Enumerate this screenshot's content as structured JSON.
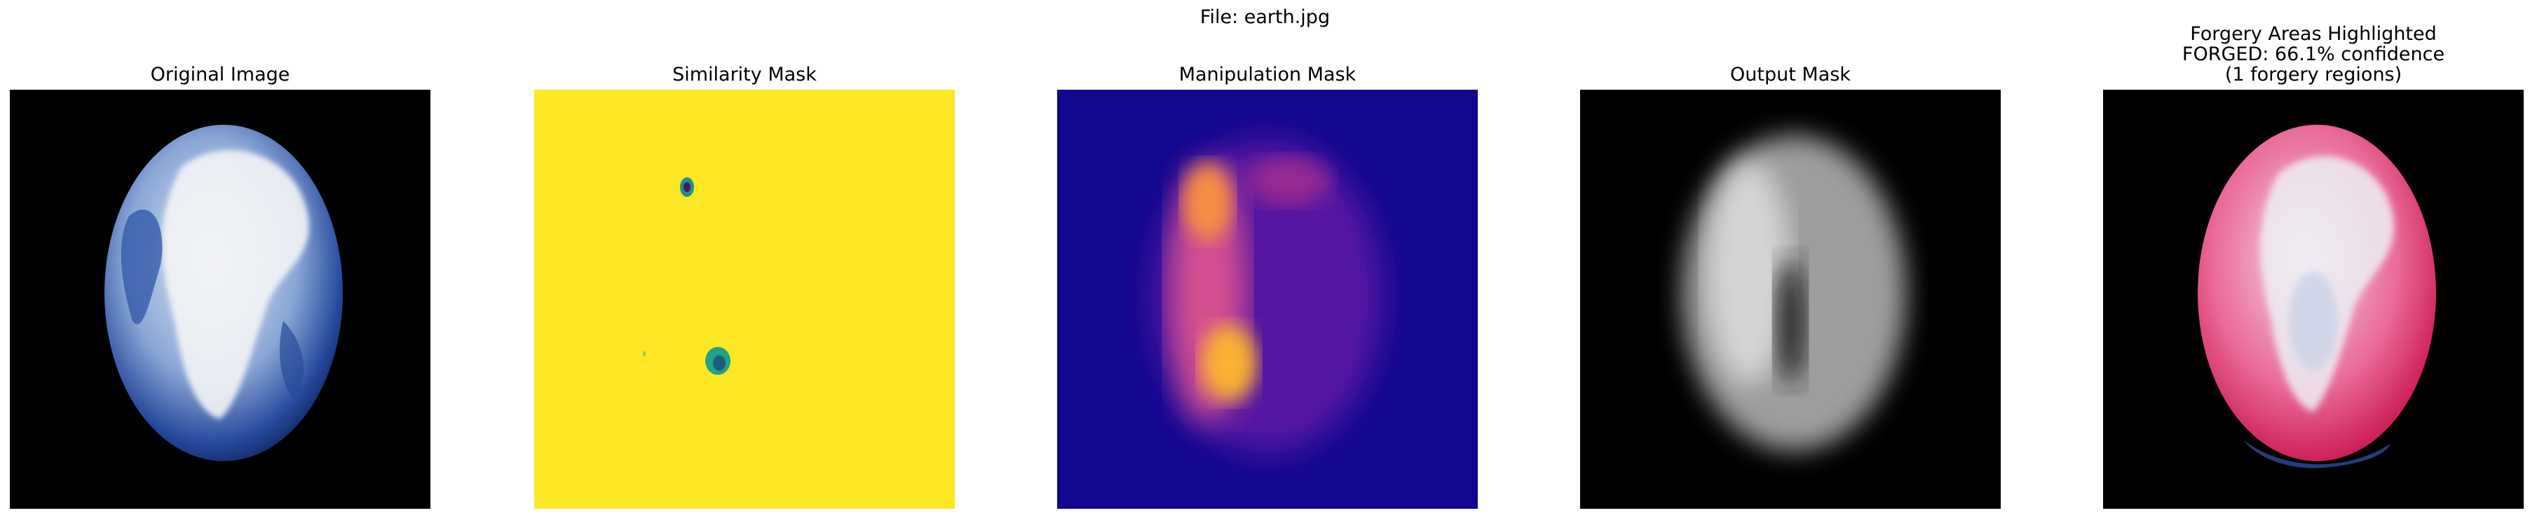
{
  "figure": {
    "suptitle": "File: earth.jpg"
  },
  "panels": [
    {
      "title": "Original Image"
    },
    {
      "title": "Similarity Mask"
    },
    {
      "title": "Manipulation Mask"
    },
    {
      "title": "Output Mask"
    },
    {
      "title_lines": [
        "Forgery Areas Highlighted",
        "FORGED: 66.1% confidence",
        "(1 forgery regions)"
      ]
    }
  ],
  "colors": {
    "background": "#ffffff",
    "mask_yellow": "#fde725",
    "plasma_bg": "#12078f",
    "forgery_pink": "#e8205f"
  }
}
